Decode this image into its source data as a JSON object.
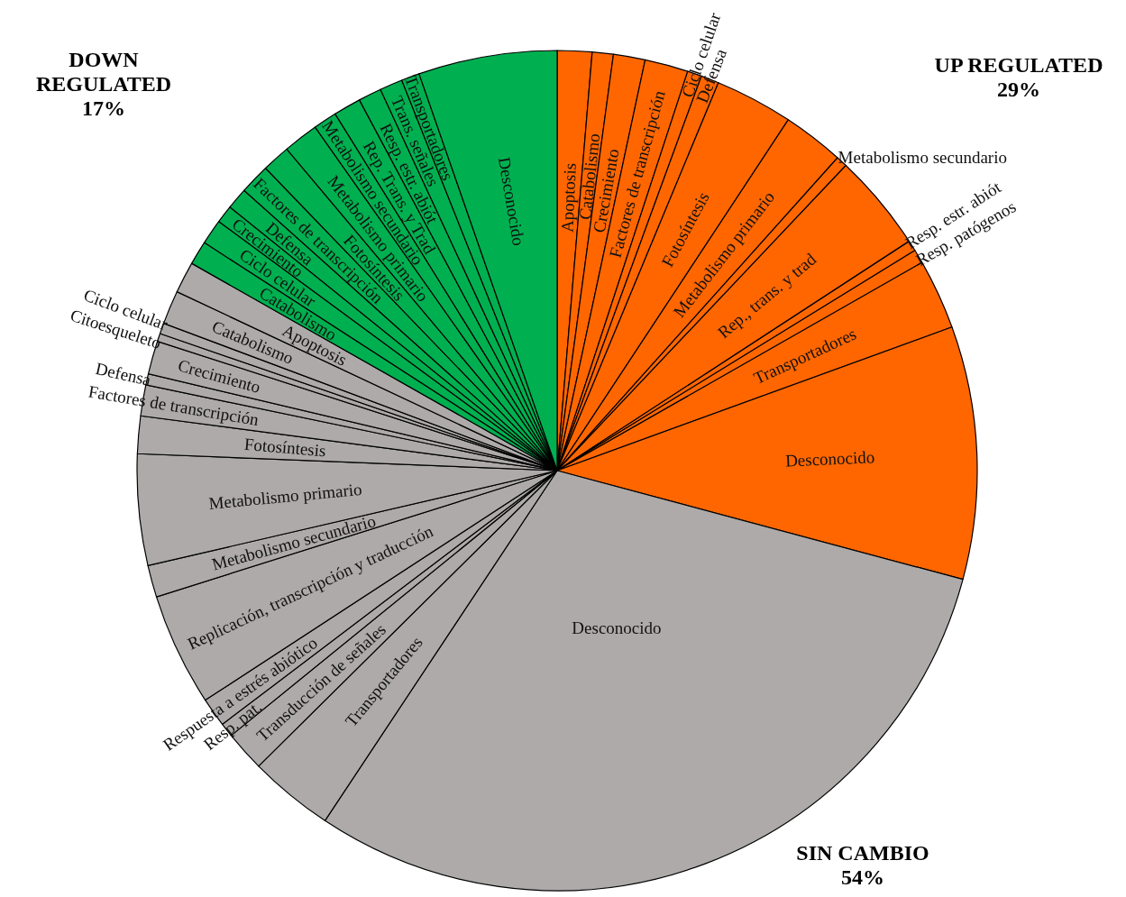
{
  "chart_data": {
    "type": "pie",
    "categories": [
      "Apoptosis",
      "Catabolismo",
      "Crecimiento",
      "Factores de transcripción",
      "Ciclo celular",
      "Defensa",
      "Fotosíntesis",
      "Metabolismo primario",
      "Metabolismo secundario",
      "Rep., trans. y trad",
      "Resp. estr. abiót",
      "Resp. patógenos",
      "Transportadores",
      "Desconocido",
      "Desconocido",
      "Transportadores",
      "Transducción de señales",
      "Resp. pat.",
      "Respuesta a estrés abiótico",
      "Replicación, transcripción y traducción",
      "Metabolismo secundario",
      "Metabolismo primario",
      "Fotosíntesis",
      "Factores de transcripción",
      "Defensa",
      "Crecimiento",
      "Citoesqueleto",
      "Ciclo celular",
      "Catabolismo",
      "Apoptosis",
      "Catabolismo",
      "Ciclo celular",
      "Crecimiento",
      "Defensa",
      "Factores de transcripción",
      "Fotosíntesis",
      "Metabolismo primario",
      "Metabolismo secundario",
      "Rep. Trans. y Trad",
      "Resp. estr. abiót",
      "Trans. señales",
      "Transportadores",
      "Desconocido"
    ],
    "values": [
      1.33,
      0.81,
      1.22,
      1.67,
      0.55,
      0.69,
      3.0,
      2.36,
      0.43,
      3.75,
      0.41,
      0.53,
      2.7,
      9.72,
      30.15,
      3.26,
      1.56,
      0.54,
      1.12,
      4.34,
      1.23,
      4.27,
      1.44,
      1.19,
      0.43,
      1.28,
      0.31,
      0.41,
      1.3,
      1.21,
      0.92,
      0.97,
      0.69,
      0.83,
      1.17,
      1.08,
      1.36,
      0.91,
      1.06,
      0.89,
      0.88,
      0.7,
      5.33
    ],
    "colors": [
      "#ff6600",
      "#ff6600",
      "#ff6600",
      "#ff6600",
      "#ff6600",
      "#ff6600",
      "#ff6600",
      "#ff6600",
      "#ff6600",
      "#ff6600",
      "#ff6600",
      "#ff6600",
      "#ff6600",
      "#ff6600",
      "#aeaaaa",
      "#aeaaaa",
      "#aeaaaa",
      "#aeaaaa",
      "#aeaaaa",
      "#aeaaaa",
      "#aeaaaa",
      "#aeaaaa",
      "#aeaaaa",
      "#aeaaaa",
      "#aeaaaa",
      "#aeaaaa",
      "#aeaaaa",
      "#aeaaaa",
      "#aeaaaa",
      "#aeaaaa",
      "#00b050",
      "#00b050",
      "#00b050",
      "#00b050",
      "#00b050",
      "#00b050",
      "#00b050",
      "#00b050",
      "#00b050",
      "#00b050",
      "#00b050",
      "#00b050",
      "#00b050"
    ],
    "annotations": [
      "DOWN\nREGULATED\n17%",
      "UP REGULATED\n29%",
      "SIN CAMBIO\n54%"
    ]
  }
}
